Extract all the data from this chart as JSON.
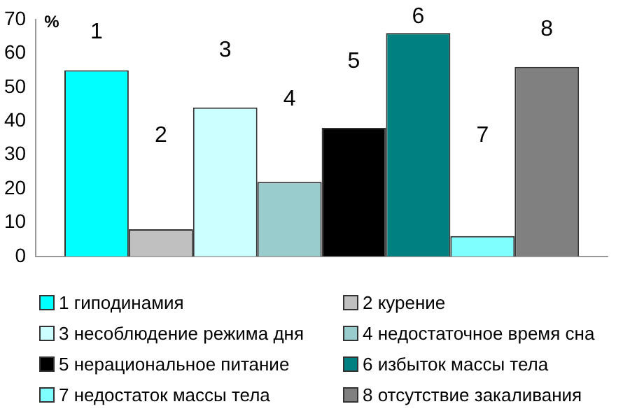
{
  "chart_data": {
    "type": "bar",
    "ylabel": "%",
    "categories": [
      null
    ],
    "ylim": [
      0,
      70
    ],
    "yticks": [
      0,
      10,
      20,
      30,
      40,
      50,
      60,
      70
    ],
    "grid": false,
    "legend": "bottom",
    "series": [
      {
        "name": "1 гиподинамия",
        "color": "#00ffff",
        "values": [
          55
        ]
      },
      {
        "name": "2 курение",
        "color": "#c0c0c0",
        "values": [
          8
        ]
      },
      {
        "name": "3 несоблюдение режима дня",
        "color": "#ccffff",
        "values": [
          44
        ]
      },
      {
        "name": "4 недостаточное время сна",
        "color": "#99cccc",
        "values": [
          22
        ]
      },
      {
        "name": "5 нерациональное питание",
        "color": "#000000",
        "values": [
          38
        ]
      },
      {
        "name": "6 избыток массы тела",
        "color": "#008080",
        "values": [
          66
        ]
      },
      {
        "name": "7 недостаток массы тела",
        "color": "#80ffff",
        "values": [
          6
        ]
      },
      {
        "name": "8 отсутствие закаливания",
        "color": "#808080",
        "values": [
          56
        ]
      }
    ],
    "annotations": [
      "1",
      "2",
      "3",
      "4",
      "5",
      "6",
      "7",
      "8"
    ]
  }
}
